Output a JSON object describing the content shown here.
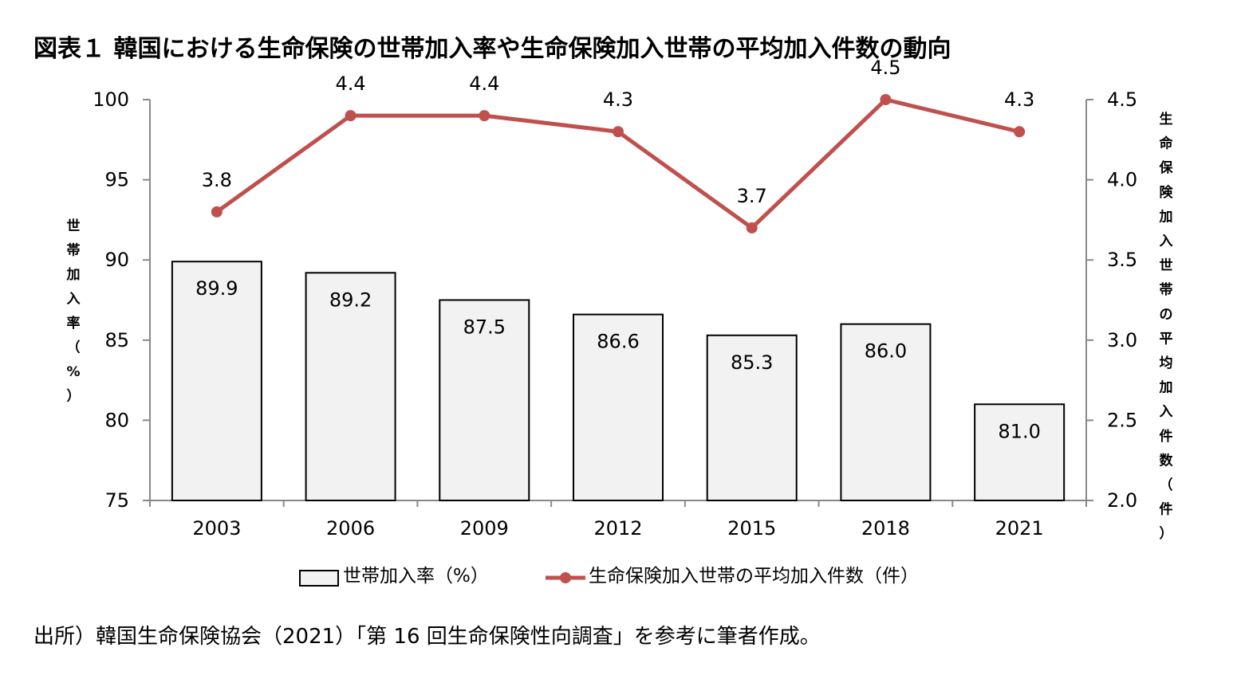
{
  "header": {
    "title": "図表１ 韓国における生命保険の世帯加入率や生命保険加入世帯の平均加入件数の動向"
  },
  "footer": {
    "source": "出所）韓国生命保険協会（2021）「第 16 回生命保険性向調査」を参考に筆者作成。"
  },
  "chart_data": {
    "type": "bar+line",
    "categories": [
      "2003",
      "2006",
      "2009",
      "2012",
      "2015",
      "2018",
      "2021"
    ],
    "series": [
      {
        "name": "世帯加入率（%）",
        "type": "bar",
        "axis": "left",
        "values": [
          89.9,
          89.2,
          87.5,
          86.6,
          85.3,
          86.0,
          81.0
        ],
        "labels": [
          "89.9",
          "89.2",
          "87.5",
          "86.6",
          "85.3",
          "86.0",
          "81.0"
        ],
        "color": "#f2f2f2",
        "edge_color": "#000000"
      },
      {
        "name": "生命保険加入世帯の平均加入件数（件）",
        "type": "line",
        "axis": "right",
        "values": [
          3.8,
          4.4,
          4.4,
          4.3,
          3.7,
          4.5,
          4.3
        ],
        "labels": [
          "3.8",
          "4.4",
          "4.4",
          "4.3",
          "3.7",
          "4.5",
          "4.3"
        ],
        "color": "#c0504d"
      }
    ],
    "y_left": {
      "label": "世帯加入率（%）",
      "ylim": [
        75,
        100
      ],
      "ticks": [
        "75",
        "80",
        "85",
        "90",
        "95",
        "100"
      ]
    },
    "y_right": {
      "label": "生命保険加入世帯の平均加入件数（件）",
      "ylim": [
        2.0,
        4.5
      ],
      "ticks": [
        "2.0",
        "2.5",
        "3.0",
        "3.5",
        "4.0",
        "4.5"
      ]
    },
    "legend_position": "bottom",
    "grid": false
  }
}
